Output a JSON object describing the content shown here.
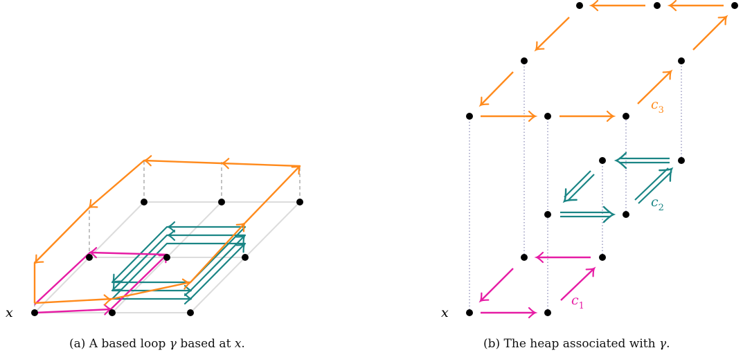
{
  "colors": {
    "orange": "#ff8a1c",
    "teal": "#1a8585",
    "magenta": "#e61ca4",
    "grid": "#dcdcdc",
    "dot": "#000000",
    "dash": "#9a9a9a",
    "dotted_line": "#7777aa"
  },
  "panel_a": {
    "base_label": "x",
    "caption_prefix": "(a) A based loop ",
    "caption_gamma": "γ",
    "caption_middle": " based at ",
    "caption_x": "x",
    "caption_end": "."
  },
  "panel_b": {
    "base_label": "x",
    "cycle_labels": [
      {
        "base": "c",
        "sub": "1"
      },
      {
        "base": "c",
        "sub": "2"
      },
      {
        "base": "c",
        "sub": "3"
      }
    ],
    "caption_prefix": "(b) The heap associated with ",
    "caption_gamma": "γ",
    "caption_end": "."
  }
}
